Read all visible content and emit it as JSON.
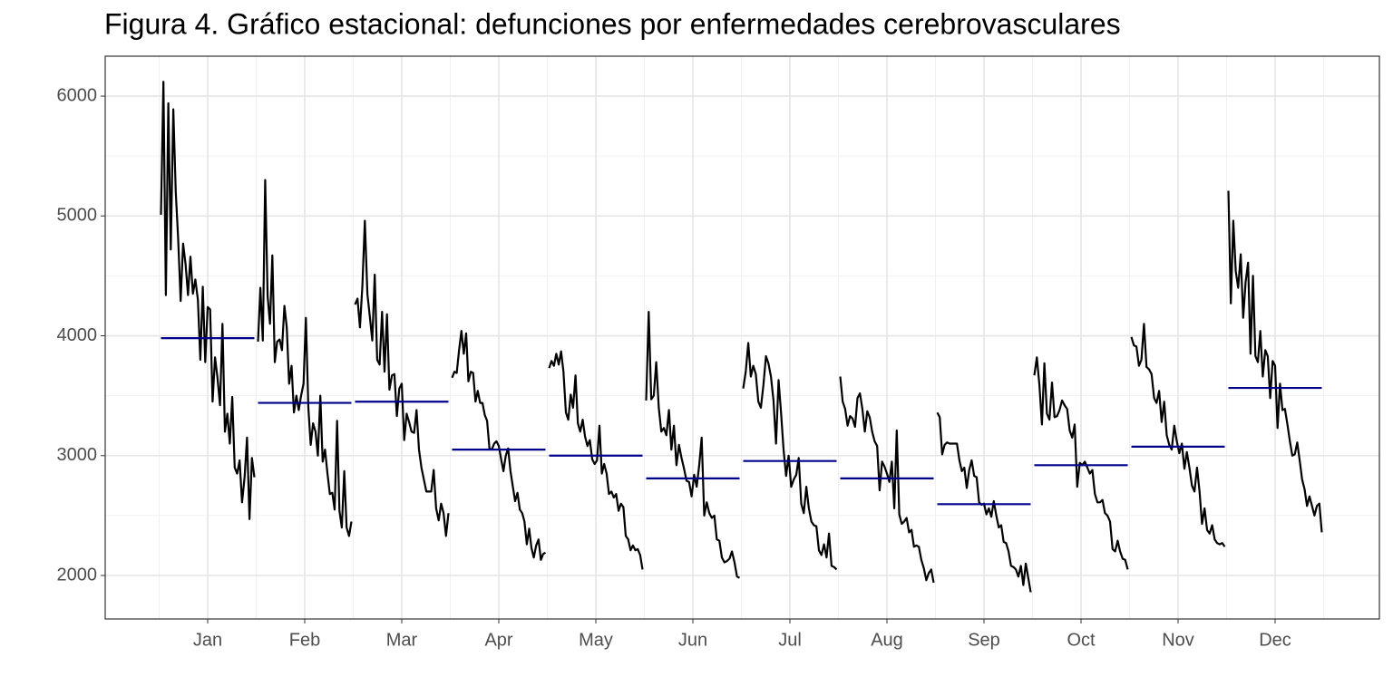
{
  "chart_data": {
    "type": "line",
    "title": "Figura 4. Gráfico estacional: defunciones por enfermedades cerebrovasculares",
    "categories": [
      "Jan",
      "Feb",
      "Mar",
      "Apr",
      "May",
      "Jun",
      "Jul",
      "Aug",
      "Sep",
      "Oct",
      "Nov",
      "Dec"
    ],
    "color": "#000000",
    "mean_color": "#00008b",
    "grid": true,
    "ylim": [
      1637,
      6333
    ],
    "yticks": [
      2000,
      3000,
      4000,
      5000,
      6000
    ],
    "means": [
      3980,
      3440,
      3450,
      3050,
      3000,
      2810,
      2955,
      2810,
      2595,
      2920,
      3075,
      3565
    ],
    "subseries": [
      [
        5010,
        6120,
        4340,
        5940,
        4720,
        5890,
        5200,
        4800,
        4290,
        4770,
        4600,
        4340,
        4660,
        4350,
        4470,
        4300,
        3800,
        4410,
        3780,
        4240,
        4220,
        3450,
        3820,
        3650,
        3420,
        4100,
        3200,
        3350,
        3100,
        3490,
        2900,
        2850,
        2960,
        2610,
        2820,
        3150,
        2470,
        2980,
        2820
      ],
      [
        3950,
        4400,
        3960,
        5300,
        4330,
        4100,
        4670,
        3780,
        3950,
        3970,
        3880,
        4250,
        4070,
        3600,
        3750,
        3360,
        3500,
        3380,
        3500,
        3600,
        4150,
        3400,
        3090,
        3270,
        3200,
        3000,
        3500,
        2950,
        3050,
        2850,
        2680,
        2690,
        2550,
        3290,
        2540,
        2400,
        2870,
        2400,
        2330,
        2450
      ],
      [
        4260,
        4310,
        4070,
        4420,
        4960,
        4350,
        4160,
        3960,
        4510,
        3800,
        3760,
        4200,
        3700,
        4180,
        3550,
        3670,
        3680,
        3330,
        3560,
        3600,
        3130,
        3350,
        3280,
        3200,
        3190,
        3380,
        3050,
        2900,
        2800,
        2700,
        2700,
        2700,
        2880,
        2560,
        2460,
        2600,
        2520,
        2330,
        2520
      ],
      [
        3650,
        3700,
        3690,
        3880,
        4040,
        3850,
        4020,
        3620,
        3700,
        3690,
        3450,
        3540,
        3440,
        3440,
        3340,
        3290,
        3060,
        3050,
        3100,
        3120,
        3080,
        2970,
        2870,
        3000,
        3060,
        2870,
        2740,
        2620,
        2690,
        2550,
        2520,
        2450,
        2260,
        2390,
        2230,
        2150,
        2250,
        2300,
        2130,
        2180,
        2190
      ],
      [
        3730,
        3790,
        3750,
        3850,
        3760,
        3870,
        3700,
        3360,
        3300,
        3510,
        3400,
        3670,
        3270,
        3200,
        3300,
        3160,
        3080,
        3130,
        2970,
        2930,
        2960,
        3250,
        2850,
        2930,
        2850,
        2680,
        2700,
        2650,
        2680,
        2540,
        2600,
        2570,
        2330,
        2300,
        2210,
        2250,
        2210,
        2220,
        2170,
        2050
      ],
      [
        3460,
        4200,
        3470,
        3500,
        3780,
        3400,
        3200,
        3230,
        3170,
        3380,
        3050,
        3250,
        2920,
        3090,
        2980,
        2890,
        2790,
        2780,
        2660,
        2840,
        2740,
        2920,
        3150,
        2500,
        2610,
        2520,
        2480,
        2500,
        2300,
        2290,
        2150,
        2110,
        2120,
        2140,
        2200,
        2110,
        1990,
        1980
      ],
      [
        3560,
        3700,
        3940,
        3660,
        3750,
        3680,
        3450,
        3400,
        3590,
        3830,
        3770,
        3660,
        3460,
        3100,
        3630,
        3350,
        3050,
        2830,
        3000,
        2740,
        2800,
        2840,
        2980,
        2600,
        2520,
        2740,
        2560,
        2450,
        2420,
        2410,
        2210,
        2170,
        2260,
        2150,
        2350,
        2080,
        2070,
        2050
      ],
      [
        3660,
        3450,
        3390,
        3250,
        3330,
        3310,
        3240,
        3480,
        3520,
        3390,
        3200,
        3370,
        3320,
        3200,
        3120,
        3080,
        2710,
        2950,
        2910,
        2850,
        2780,
        2950,
        2560,
        3210,
        2510,
        2430,
        2450,
        2480,
        2360,
        2380,
        2240,
        2250,
        2240,
        2130,
        2060,
        1960,
        2020,
        2050,
        1940
      ],
      [
        3360,
        3320,
        3010,
        3090,
        3110,
        3100,
        3100,
        3100,
        3100,
        2960,
        2870,
        2900,
        2730,
        2880,
        2960,
        2830,
        2820,
        2610,
        2590,
        2600,
        2510,
        2560,
        2490,
        2620,
        2500,
        2400,
        2420,
        2280,
        2270,
        2200,
        2080,
        2070,
        2050,
        1990,
        2080,
        1920,
        2100,
        1980,
        1860
      ],
      [
        3670,
        3820,
        3590,
        3260,
        3770,
        3350,
        3300,
        3610,
        3320,
        3330,
        3380,
        3460,
        3420,
        3390,
        3210,
        3150,
        3260,
        2740,
        2940,
        2920,
        2950,
        2900,
        2850,
        2880,
        2680,
        2610,
        2610,
        2630,
        2520,
        2500,
        2450,
        2220,
        2200,
        2290,
        2200,
        2140,
        2130,
        2050
      ],
      [
        3990,
        3920,
        3910,
        3750,
        3800,
        4100,
        3740,
        3720,
        3680,
        3480,
        3440,
        3540,
        3280,
        3450,
        3170,
        3090,
        3050,
        3250,
        3120,
        3020,
        3100,
        2890,
        3030,
        2900,
        2750,
        2700,
        2900,
        2700,
        2430,
        2560,
        2380,
        2350,
        2420,
        2300,
        2270,
        2260,
        2270,
        2240
      ],
      [
        5210,
        4270,
        4960,
        4540,
        4400,
        4680,
        4150,
        4450,
        4610,
        3850,
        4500,
        3830,
        3780,
        4040,
        3660,
        3880,
        3830,
        3480,
        3790,
        3750,
        3230,
        3600,
        3380,
        3390,
        3260,
        3120,
        3000,
        3010,
        3110,
        2960,
        2800,
        2720,
        2580,
        2660,
        2580,
        2500,
        2580,
        2600,
        2360
      ]
    ]
  }
}
